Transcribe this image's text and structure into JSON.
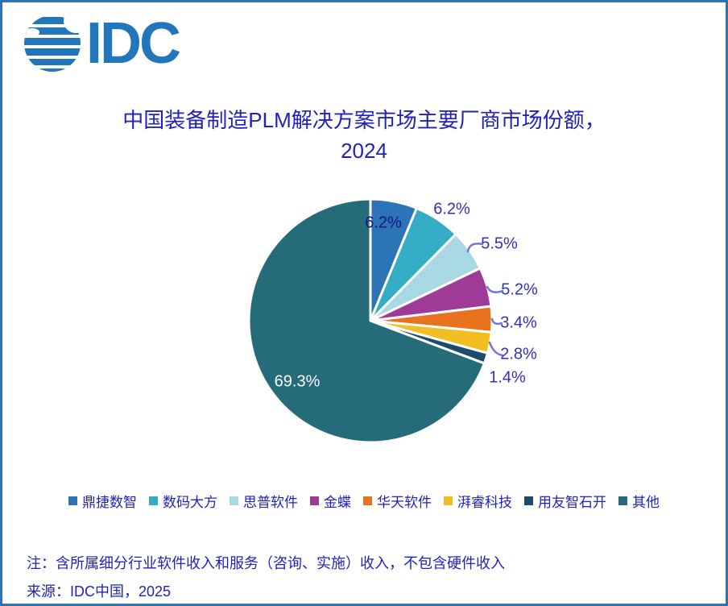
{
  "logo": {
    "text": "IDC",
    "color": "#2176BC"
  },
  "title": {
    "line1": "中国装备制造PLM解决方案市场主要厂商市场份额，",
    "line2": "2024"
  },
  "chart_data": {
    "type": "pie",
    "title": "中国装备制造PLM解决方案市场主要厂商市场份额，2024",
    "start_angle_deg": 0,
    "direction": "clockwise",
    "legend_position": "bottom",
    "slices": [
      {
        "label": "鼎捷数智",
        "value": 6.2,
        "display": "6.2%",
        "color": "#2C74B5"
      },
      {
        "label": "数码大方",
        "value": 6.2,
        "display": "6.2%",
        "color": "#33ACC4"
      },
      {
        "label": "思普软件",
        "value": 5.5,
        "display": "5.5%",
        "color": "#A8D8E4"
      },
      {
        "label": "金蝶",
        "value": 5.2,
        "display": "5.2%",
        "color": "#A03A98"
      },
      {
        "label": "华天软件",
        "value": 3.4,
        "display": "3.4%",
        "color": "#EA721F"
      },
      {
        "label": "湃睿科技",
        "value": 2.8,
        "display": "2.8%",
        "color": "#F2BE22"
      },
      {
        "label": "用友智石开",
        "value": 1.4,
        "display": "1.4%",
        "color": "#1E4A6D"
      },
      {
        "label": "其他",
        "value": 69.3,
        "display": "69.3%",
        "color": "#266B7A"
      }
    ]
  },
  "notes": {
    "note": "注：含所属细分行业软件收入和服务（咨询、实施）收入，不包含硬件收入",
    "source": "来源：IDC中国，2025"
  },
  "colors": {
    "border": "#2E75B6",
    "text": "#2222BB",
    "leader_line": "#7575DA",
    "label_outside": "#3232B4",
    "label_inside_dark": "#12128E",
    "label_inside_light": "#FFFFFF"
  }
}
